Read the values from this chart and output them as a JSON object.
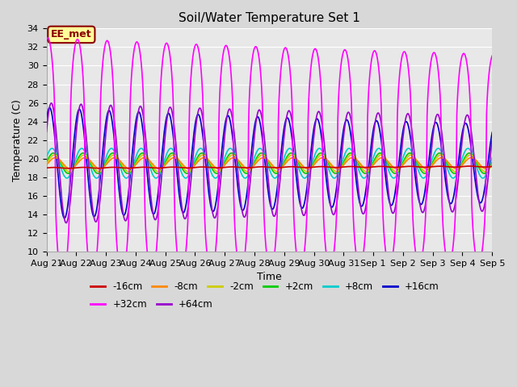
{
  "title": "Soil/Water Temperature Set 1",
  "xlabel": "Time",
  "ylabel": "Temperature (C)",
  "ylim": [
    10,
    34
  ],
  "yticks": [
    10,
    12,
    14,
    16,
    18,
    20,
    22,
    24,
    26,
    28,
    30,
    32,
    34
  ],
  "date_labels": [
    "Aug 21",
    "Aug 22",
    "Aug 23",
    "Aug 24",
    "Aug 25",
    "Aug 26",
    "Aug 27",
    "Aug 28",
    "Aug 29",
    "Aug 30",
    "Aug 31",
    "Sep 1",
    "Sep 2",
    "Sep 3",
    "Sep 4",
    "Sep 5"
  ],
  "annotation_text": "EE_met",
  "annotation_bg": "#ffff99",
  "annotation_border": "#8B0000",
  "series_colors": {
    "-16cm": "#cc0000",
    "-8cm": "#ff8800",
    "-2cm": "#cccc00",
    "+2cm": "#00cc00",
    "+8cm": "#00cccc",
    "+16cm": "#0000cc",
    "+32cm": "#ff00ff",
    "+64cm": "#9900cc"
  },
  "bg_color": "#d8d8d8",
  "plot_bg": "#e8e8e8",
  "grid_color": "#ffffff"
}
